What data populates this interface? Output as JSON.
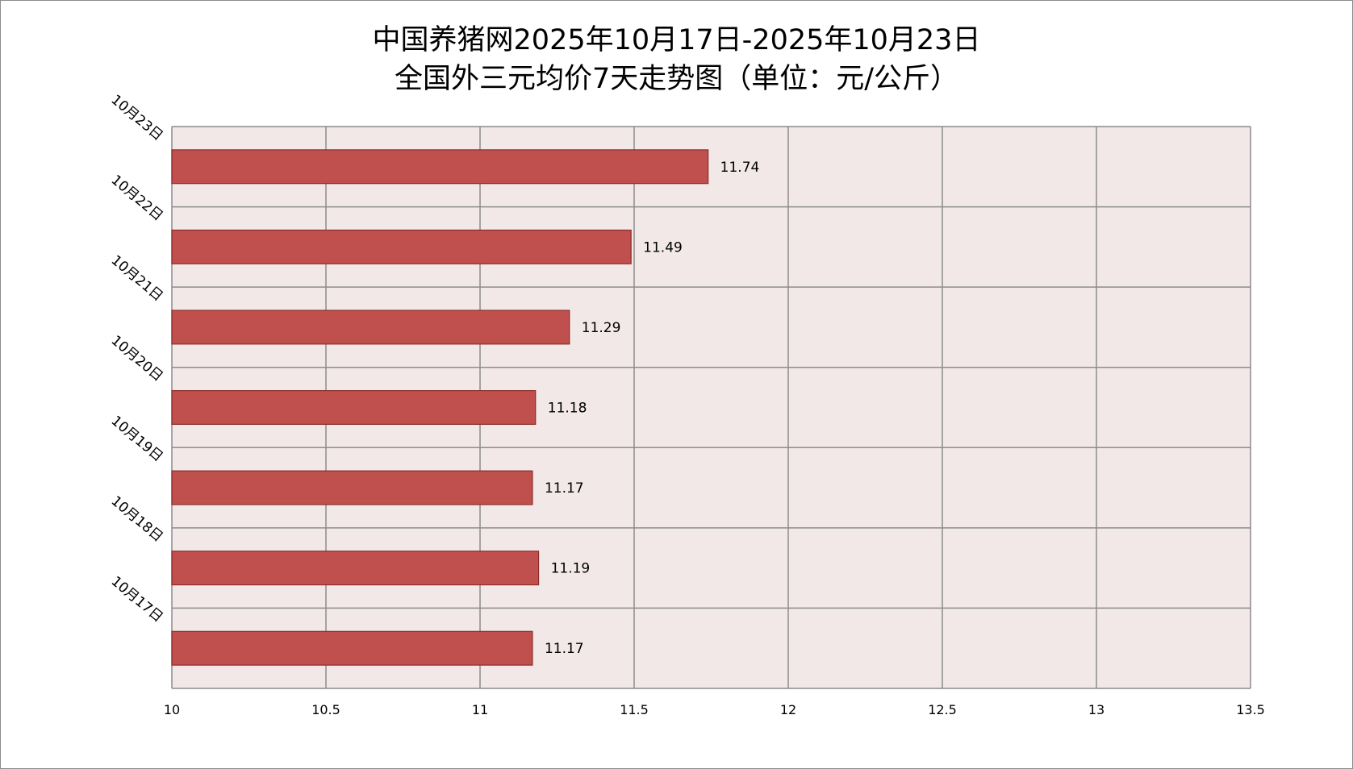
{
  "chart_data": {
    "type": "bar",
    "orientation": "horizontal",
    "title_line1": "中国养猪网2025年10月17日-2025年10月23日",
    "title_line2": "全国外三元均价7天走势图（单位：元/公斤）",
    "categories": [
      "10月17日",
      "10月18日",
      "10月19日",
      "10月20日",
      "10月21日",
      "10月22日",
      "10月23日"
    ],
    "values": [
      11.17,
      11.19,
      11.17,
      11.18,
      11.29,
      11.49,
      11.74
    ],
    "data_labels": [
      "11.17",
      "11.19",
      "11.17",
      "11.18",
      "11.29",
      "11.49",
      "11.74"
    ],
    "xlim": [
      10,
      13.5
    ],
    "x_ticks": [
      "10",
      "10.5",
      "11",
      "11.5",
      "12",
      "12.5",
      "13",
      "13.5"
    ],
    "grid": true,
    "legend": "none",
    "colors": {
      "bar_fill": "#c0504d",
      "bar_stroke": "#8b2d2a",
      "plot_background": "#f2e8e8",
      "grid": "#8c8c8c"
    }
  }
}
